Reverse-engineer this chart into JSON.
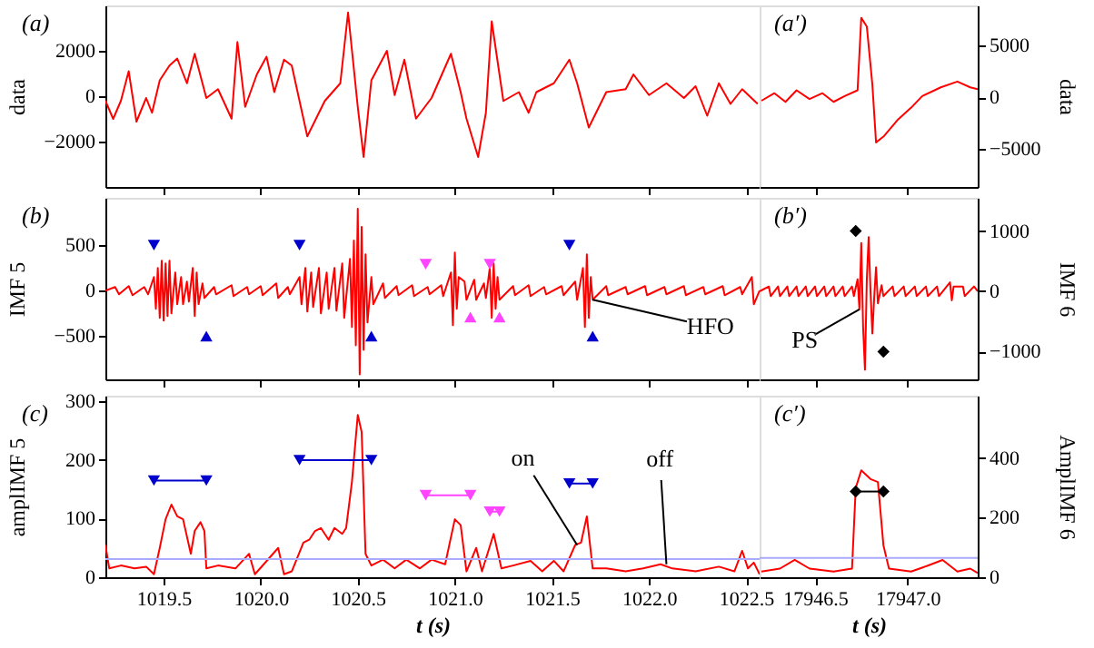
{
  "chart_data": [
    {
      "type": "line",
      "ylabel": "data",
      "tick_labels": "y",
      "annotations": [
        "(a)"
      ],
      "xlim": [
        1019.2,
        1022.57
      ],
      "xticks": [
        1019.5,
        1020.0,
        1020.5,
        1021.0,
        1021.5,
        1022.0,
        1022.5
      ],
      "ylim": [
        -4000,
        4000
      ],
      "yticks": [
        -2000,
        0,
        2000
      ],
      "x": [
        1019.2,
        1019.24,
        1019.28,
        1019.32,
        1019.36,
        1019.41,
        1019.44,
        1019.48,
        1019.53,
        1019.57,
        1019.62,
        1019.66,
        1019.72,
        1019.78,
        1019.85,
        1019.88,
        1019.92,
        1019.98,
        1020.03,
        1020.07,
        1020.12,
        1020.16,
        1020.24,
        1020.33,
        1020.41,
        1020.45,
        1020.5,
        1020.53,
        1020.57,
        1020.65,
        1020.69,
        1020.74,
        1020.8,
        1020.88,
        1020.98,
        1021.03,
        1021.06,
        1021.12,
        1021.16,
        1021.19,
        1021.25,
        1021.33,
        1021.38,
        1021.42,
        1021.51,
        1021.59,
        1021.63,
        1021.69,
        1021.78,
        1021.88,
        1021.92,
        1022.0,
        1022.09,
        1022.18,
        1022.24,
        1022.3,
        1022.36,
        1022.42,
        1022.48,
        1022.56
      ],
      "series": [
        {
          "color": "#ff0000",
          "values": [
            -200,
            -1000,
            -200,
            1100,
            -1120,
            -80,
            -730,
            700,
            1350,
            1660,
            570,
            1870,
            -80,
            310,
            -990,
            2390,
            -470,
            960,
            1740,
            180,
            1610,
            1350,
            -1770,
            -210,
            570,
            3690,
            -470,
            -2680,
            700,
            2000,
            50,
            1610,
            -990,
            -80,
            1870,
            180,
            -990,
            -2680,
            -730,
            3300,
            -210,
            180,
            -730,
            180,
            570,
            1610,
            570,
            -1380,
            180,
            310,
            960,
            50,
            570,
            -80,
            440,
            -860,
            570,
            -340,
            310,
            -340
          ]
        }
      ]
    },
    {
      "type": "line",
      "ylabel": "data",
      "tick_labels": "y",
      "annotations": [
        "(a′)"
      ],
      "xlim": [
        17946.2,
        17947.38
      ],
      "xticks": [
        17946.5,
        17947.0
      ],
      "ylim": [
        -8700,
        8900
      ],
      "yticks": [
        -5000,
        0,
        5000
      ],
      "x": [
        17946.21,
        17946.28,
        17946.34,
        17946.4,
        17946.47,
        17946.54,
        17946.6,
        17946.66,
        17946.73,
        17946.75,
        17946.78,
        17946.81,
        17946.83,
        17946.87,
        17946.95,
        17947.02,
        17947.08,
        17947.18,
        17947.27,
        17947.34,
        17947.38
      ],
      "series": [
        {
          "color": "#ff0000",
          "values": [
            -340,
            390,
            -450,
            670,
            -170,
            390,
            -450,
            110,
            670,
            7700,
            6860,
            1240,
            -4380,
            -3820,
            -2140,
            -1010,
            110,
            960,
            1520,
            960,
            790
          ]
        }
      ]
    },
    {
      "type": "line",
      "ylabel": "IMF 5",
      "tick_labels": "y",
      "annotations": [
        "(b)",
        {
          "text": "HFO",
          "x": 1021.71,
          "y": -100
        }
      ],
      "xlim": [
        1019.2,
        1022.57
      ],
      "xticks": [
        1019.5,
        1020.0,
        1020.5,
        1021.0,
        1021.5,
        1022.0,
        1022.5
      ],
      "ylim": [
        -975,
        1020
      ],
      "yticks": [
        -500,
        0,
        500
      ],
      "x": [
        1019.2,
        1019.25,
        1019.27,
        1019.32,
        1019.34,
        1019.4,
        1019.42,
        1019.45,
        1019.46,
        1019.47,
        1019.48,
        1019.49,
        1019.5,
        1019.51,
        1019.52,
        1019.53,
        1019.54,
        1019.56,
        1019.57,
        1019.59,
        1019.6,
        1019.62,
        1019.63,
        1019.65,
        1019.66,
        1019.67,
        1019.68,
        1019.7,
        1019.71,
        1019.76,
        1019.77,
        1019.85,
        1019.86,
        1019.93,
        1019.94,
        1020.0,
        1020.01,
        1020.08,
        1020.09,
        1020.14,
        1020.15,
        1020.2,
        1020.21,
        1020.23,
        1020.24,
        1020.26,
        1020.27,
        1020.3,
        1020.31,
        1020.34,
        1020.35,
        1020.38,
        1020.39,
        1020.42,
        1020.43,
        1020.46,
        1020.47,
        1020.48,
        1020.49,
        1020.5,
        1020.51,
        1020.52,
        1020.53,
        1020.54,
        1020.55,
        1020.57,
        1020.58,
        1020.63,
        1020.64,
        1020.7,
        1020.71,
        1020.78,
        1020.79,
        1020.86,
        1020.87,
        1020.93,
        1020.94,
        1020.98,
        1020.99,
        1021.0,
        1021.01,
        1021.02,
        1021.05,
        1021.06,
        1021.1,
        1021.11,
        1021.15,
        1021.16,
        1021.18,
        1021.19,
        1021.2,
        1021.21,
        1021.22,
        1021.23,
        1021.3,
        1021.31,
        1021.38,
        1021.39,
        1021.46,
        1021.47,
        1021.55,
        1021.56,
        1021.62,
        1021.63,
        1021.66,
        1021.67,
        1021.68,
        1021.69,
        1021.7,
        1021.71,
        1021.78,
        1021.79,
        1021.88,
        1021.89,
        1021.98,
        1021.99,
        1022.08,
        1022.09,
        1022.18,
        1022.19,
        1022.28,
        1022.29,
        1022.38,
        1022.39,
        1022.47,
        1022.48,
        1022.53,
        1022.54,
        1022.57
      ],
      "series": [
        {
          "color": "#ff0000",
          "values": [
            0,
            40,
            -40,
            50,
            -50,
            40,
            -40,
            150,
            -200,
            250,
            -300,
            330,
            -330,
            300,
            -280,
            330,
            -250,
            200,
            -150,
            150,
            -150,
            100,
            -120,
            250,
            -280,
            200,
            -150,
            80,
            -80,
            40,
            -40,
            60,
            -60,
            40,
            -40,
            50,
            -50,
            80,
            -80,
            40,
            -40,
            150,
            -150,
            250,
            -230,
            200,
            -180,
            250,
            -250,
            200,
            -200,
            250,
            -220,
            300,
            -300,
            350,
            -400,
            550,
            -600,
            900,
            -920,
            700,
            -650,
            400,
            -350,
            150,
            -150,
            80,
            -80,
            50,
            -50,
            60,
            -60,
            40,
            -40,
            60,
            -60,
            200,
            -380,
            420,
            -200,
            150,
            100,
            -100,
            120,
            -100,
            80,
            -80,
            250,
            -300,
            300,
            -200,
            150,
            -100,
            50,
            -50,
            60,
            -60,
            40,
            -40,
            50,
            -50,
            100,
            -100,
            250,
            -400,
            400,
            -300,
            150,
            -100,
            50,
            -50,
            40,
            -40,
            50,
            -50,
            40,
            -40,
            50,
            -50,
            40,
            -40,
            50,
            -50,
            40,
            -40,
            150,
            -150,
            0
          ]
        },
        {
          "type": "scatter",
          "marker": "triangle-down",
          "color": "#0000cc",
          "x": [
            1019.45,
            1020.2,
            1021.59
          ],
          "values": [
            500,
            500,
            500
          ]
        },
        {
          "type": "scatter",
          "marker": "triangle-up",
          "color": "#0000cc",
          "x": [
            1019.72,
            1020.57,
            1021.71
          ],
          "values": [
            -500,
            -500,
            -500
          ]
        },
        {
          "type": "scatter",
          "marker": "triangle-down",
          "color": "#ff44ff",
          "x": [
            1020.85,
            1021.18
          ],
          "values": [
            290,
            290
          ]
        },
        {
          "type": "scatter",
          "marker": "triangle-up",
          "color": "#ff44ff",
          "x": [
            1021.08,
            1021.23
          ],
          "values": [
            -290,
            -290
          ]
        }
      ]
    },
    {
      "type": "line",
      "ylabel": "IMF 6",
      "tick_labels": "y",
      "annotations": [
        "(b′)",
        {
          "text": "PS",
          "x": 17946.74,
          "y": -300
        }
      ],
      "xlim": [
        17946.2,
        17947.38
      ],
      "xticks": [
        17946.5,
        17947.0
      ],
      "ylim": [
        -1460,
        1550
      ],
      "yticks": [
        -1000,
        0,
        1000
      ],
      "x": [
        17946.2,
        17946.25,
        17946.26,
        17946.3,
        17946.31,
        17946.35,
        17946.36,
        17946.4,
        17946.41,
        17946.45,
        17946.46,
        17946.5,
        17946.51,
        17946.55,
        17946.56,
        17946.6,
        17946.61,
        17946.65,
        17946.66,
        17946.7,
        17946.71,
        17946.73,
        17946.74,
        17946.75,
        17946.76,
        17946.77,
        17946.78,
        17946.79,
        17946.8,
        17946.81,
        17946.82,
        17946.83,
        17946.84,
        17946.86,
        17946.87,
        17946.92,
        17946.93,
        17946.98,
        17946.99,
        17947.04,
        17947.05,
        17947.1,
        17947.11,
        17947.16,
        17947.17,
        17947.23,
        17947.24,
        17947.25,
        17947.3,
        17947.31,
        17947.36,
        17947.38
      ],
      "series": [
        {
          "color": "#ff0000",
          "values": [
            0,
            80,
            -80,
            80,
            -80,
            80,
            -80,
            80,
            -80,
            80,
            -80,
            80,
            -80,
            80,
            -80,
            80,
            -80,
            80,
            -80,
            80,
            -80,
            200,
            -300,
            800,
            -600,
            -1300,
            200,
            900,
            0,
            -700,
            -100,
            400,
            -200,
            100,
            -80,
            80,
            -80,
            80,
            -80,
            80,
            -80,
            80,
            -80,
            80,
            -80,
            150,
            -150,
            80,
            80,
            -80,
            80,
            0
          ]
        },
        {
          "type": "scatter",
          "marker": "diamond",
          "color": "#000000",
          "x": [
            17946.72,
            17946.87
          ],
          "values": [
            1000,
            -1000
          ]
        }
      ]
    },
    {
      "type": "line",
      "ylabel": "amplIMF 5",
      "xlabel": "t (s)",
      "annotations": [
        "(c)",
        {
          "text": "on",
          "x": 1021.63,
          "y": 55
        },
        {
          "text": "off",
          "x": 1022.09,
          "y": 22
        }
      ],
      "xlim": [
        1019.2,
        1022.57
      ],
      "xticks": [
        1019.5,
        {
          "value": 1020,
          "label": "1020.0"
        },
        1020.5,
        {
          "value": 1021,
          "label": "1021.0"
        },
        1021.5,
        {
          "value": 1022,
          "label": "1022.0"
        },
        1022.5
      ],
      "ylim": [
        0,
        310
      ],
      "yticks": [
        0,
        100,
        200,
        300
      ],
      "ref_lines": [
        {
          "axis": "y",
          "value": 31,
          "color": "#aaaaff"
        }
      ],
      "x": [
        1019.2,
        1019.22,
        1019.28,
        1019.35,
        1019.41,
        1019.45,
        1019.48,
        1019.51,
        1019.54,
        1019.57,
        1019.6,
        1019.64,
        1019.66,
        1019.69,
        1019.71,
        1019.72,
        1019.78,
        1019.87,
        1019.94,
        1019.97,
        1020.09,
        1020.12,
        1020.16,
        1020.22,
        1020.25,
        1020.28,
        1020.31,
        1020.35,
        1020.38,
        1020.42,
        1020.44,
        1020.47,
        1020.5,
        1020.52,
        1020.54,
        1020.57,
        1020.63,
        1020.69,
        1020.75,
        1020.82,
        1020.88,
        1020.95,
        1021.0,
        1021.03,
        1021.06,
        1021.11,
        1021.14,
        1021.2,
        1021.24,
        1021.3,
        1021.39,
        1021.45,
        1021.51,
        1021.56,
        1021.62,
        1021.65,
        1021.68,
        1021.71,
        1021.78,
        1021.88,
        1021.97,
        1022.06,
        1022.12,
        1022.24,
        1022.36,
        1022.44,
        1022.48,
        1022.51,
        1022.54,
        1022.57
      ],
      "series": [
        {
          "color": "#ff0000",
          "values": [
            55,
            15,
            20,
            15,
            18,
            5,
            50,
            99,
            124,
            104,
            99,
            40,
            79,
            94,
            79,
            15,
            20,
            15,
            40,
            5,
            50,
            5,
            10,
            59,
            64,
            79,
            84,
            64,
            84,
            74,
            84,
            163,
            277,
            248,
            40,
            20,
            30,
            15,
            30,
            15,
            30,
            22,
            99,
            89,
            10,
            50,
            10,
            74,
            15,
            20,
            28,
            10,
            28,
            10,
            55,
            59,
            104,
            15,
            15,
            10,
            15,
            22,
            15,
            10,
            18,
            10,
            45,
            15,
            25,
            5
          ]
        },
        {
          "type": "line",
          "marker": "triangle-down",
          "color": "#0000cc",
          "x": [
            1019.45,
            1019.72
          ],
          "values": [
            165,
            165
          ]
        },
        {
          "type": "line",
          "marker": "triangle-down",
          "color": "#0000cc",
          "x": [
            1020.2,
            1020.57
          ],
          "values": [
            200,
            200
          ]
        },
        {
          "type": "line",
          "marker": "triangle-down",
          "color": "#0000cc",
          "x": [
            1021.59,
            1021.71
          ],
          "values": [
            160,
            160
          ]
        },
        {
          "type": "line",
          "marker": "triangle-down",
          "color": "#ff44ff",
          "x": [
            1020.85,
            1021.08
          ],
          "values": [
            140,
            140
          ]
        },
        {
          "type": "line",
          "marker": "triangle-down",
          "color": "#ff44ff",
          "x": [
            1021.18,
            1021.23
          ],
          "values": [
            112,
            112
          ]
        }
      ]
    },
    {
      "type": "line",
      "ylabel": "AmplIMF 6",
      "xlabel": "t (s)",
      "annotations": [
        "(c′)"
      ],
      "xlim": [
        17946.2,
        17947.38
      ],
      "xticks": [
        17946.5,
        {
          "value": 17947,
          "label": "17947.0"
        }
      ],
      "ylim": [
        0,
        610
      ],
      "yticks": [
        0,
        200,
        400
      ],
      "ref_lines": [
        {
          "axis": "y",
          "value": 65,
          "color": "#aaaaff"
        }
      ],
      "x": [
        17946.21,
        17946.31,
        17946.39,
        17946.47,
        17946.6,
        17946.7,
        17946.72,
        17946.75,
        17946.8,
        17946.84,
        17946.87,
        17946.9,
        17947.02,
        17947.11,
        17947.19,
        17947.27,
        17947.34,
        17947.38
      ],
      "series": [
        {
          "color": "#ff0000",
          "values": [
            19,
            29,
            58,
            29,
            19,
            29,
            300,
            359,
            330,
            320,
            107,
            29,
            19,
            39,
            58,
            19,
            29,
            14
          ]
        },
        {
          "type": "line",
          "marker": "diamond",
          "color": "#000000",
          "x": [
            17946.72,
            17946.87
          ],
          "values": [
            288,
            288
          ]
        }
      ]
    }
  ]
}
